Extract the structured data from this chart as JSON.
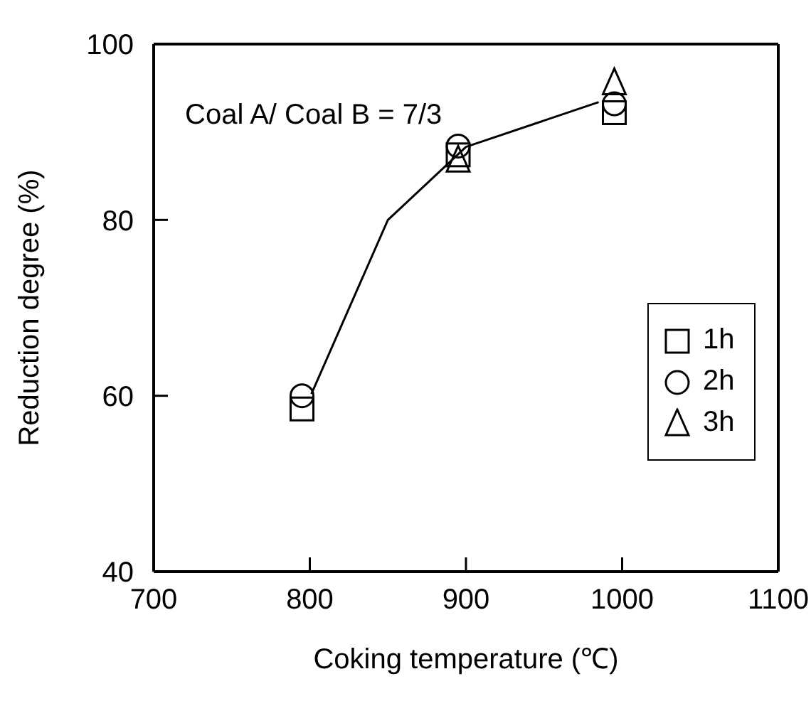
{
  "chart_data": {
    "type": "scatter",
    "xlabel": "Coking temperature (℃)",
    "ylabel": "Reduction degree (%)",
    "annotations": [
      "Coal A/ Coal B = 7/3"
    ],
    "xlim": [
      700,
      1100
    ],
    "xticks": [
      700,
      800,
      900,
      1000,
      1100
    ],
    "ylim": [
      40,
      100
    ],
    "yticks": [
      40,
      60,
      80,
      100
    ],
    "legend": "bottom right",
    "series": [
      {
        "name": "1h",
        "color": "#000000",
        "marker": "square",
        "x": [
          795,
          895,
          995
        ],
        "values": [
          58.5,
          87.4,
          92.2
        ]
      },
      {
        "name": "2h",
        "color": "#000000",
        "marker": "circle",
        "x": [
          795,
          895,
          995
        ],
        "values": [
          60,
          88.4,
          93.2
        ]
      },
      {
        "name": "3h",
        "color": "#000000",
        "marker": "triangle",
        "x": [
          895,
          995
        ],
        "values": [
          86.8,
          95.6
        ]
      },
      {
        "type": "line",
        "color": "#000000",
        "marker": "none",
        "x": [
          801,
          850,
          900,
          985
        ],
        "values": [
          60.2,
          80,
          88.3,
          93.4
        ]
      }
    ]
  }
}
